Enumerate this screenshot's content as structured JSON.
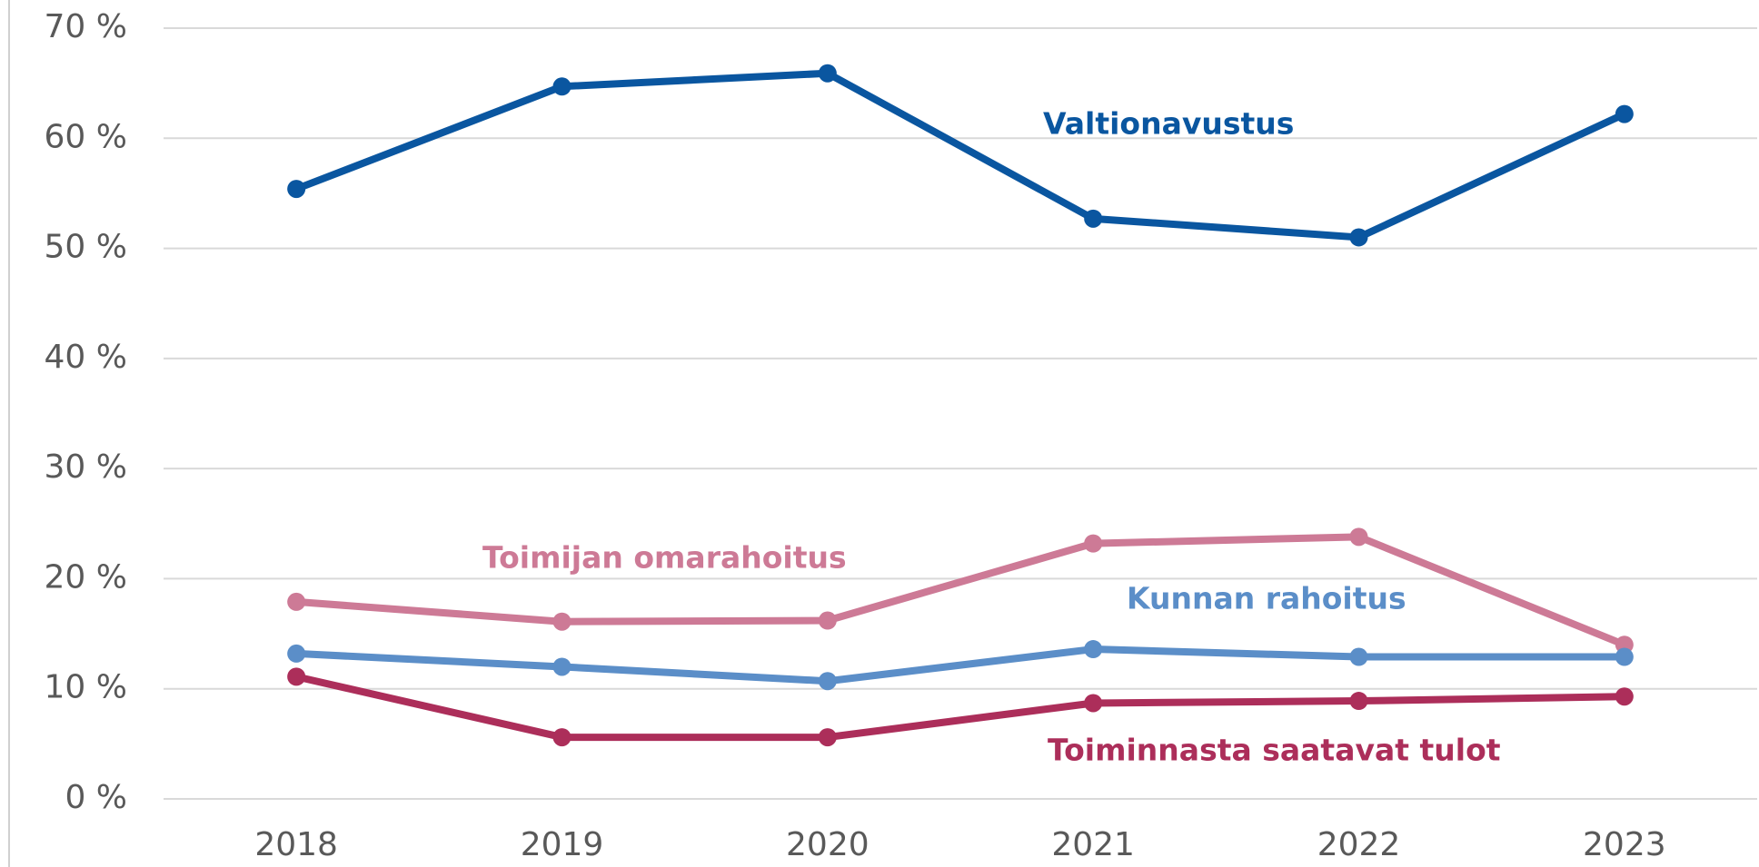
{
  "chart_data": {
    "type": "line",
    "categories": [
      "2018",
      "2019",
      "2020",
      "2021",
      "2022",
      "2023"
    ],
    "series": [
      {
        "name": "Valtionavustus",
        "color": "#0a56a0",
        "values": [
          55.4,
          64.7,
          65.9,
          52.7,
          51.0,
          62.2
        ]
      },
      {
        "name": "Toimijan omarahoitus",
        "color": "#cd7a96",
        "values": [
          17.9,
          16.1,
          16.2,
          23.2,
          23.8,
          14.0
        ]
      },
      {
        "name": "Kunnan rahoitus",
        "color": "#5b8ec8",
        "values": [
          13.2,
          12.0,
          10.7,
          13.6,
          12.9,
          12.9
        ]
      },
      {
        "name": "Toiminnasta saatavat tulot",
        "color": "#ac2e5a",
        "values": [
          11.1,
          5.6,
          5.6,
          8.7,
          8.9,
          9.3
        ]
      }
    ],
    "ylim": [
      0,
      70
    ],
    "yticks": [
      {
        "value": 0,
        "label": "0 %"
      },
      {
        "value": 10,
        "label": "10 %"
      },
      {
        "value": 20,
        "label": "20 %"
      },
      {
        "value": 30,
        "label": "30 %"
      },
      {
        "value": 40,
        "label": "40 %"
      },
      {
        "value": 50,
        "label": "50 %"
      },
      {
        "value": 60,
        "label": "60 %"
      },
      {
        "value": 70,
        "label": "70 %"
      }
    ],
    "grid": true
  }
}
